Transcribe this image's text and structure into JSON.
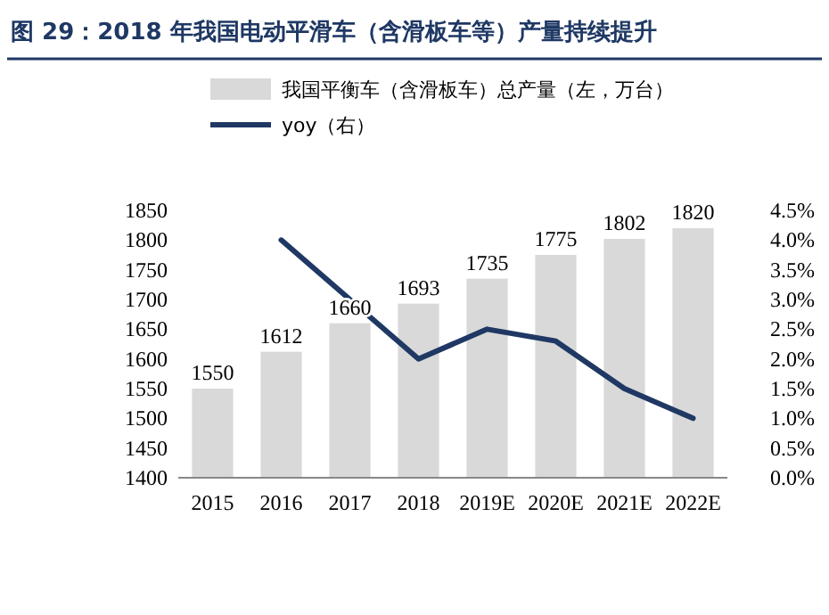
{
  "chart_data": {
    "type": "bar",
    "title": "图 29：2018 年我国电动平滑车（含滑板车等）产量持续提升",
    "categories": [
      "2015",
      "2016",
      "2017",
      "2018",
      "2019E",
      "2020E",
      "2021E",
      "2022E"
    ],
    "series": [
      {
        "name": "我国平衡车（含滑板车）总产量（左，万台）",
        "color": "#d9d9d9",
        "values": [
          1550,
          1612,
          1660,
          1693,
          1735,
          1775,
          1802,
          1820
        ],
        "value_labels": [
          "1550",
          "1612",
          "1660",
          "1693",
          "1735",
          "1775",
          "1802",
          "1820"
        ]
      },
      {
        "name": "yoy（右）",
        "type": "line",
        "axis": "y2",
        "color": "#1f3864",
        "values": [
          null,
          4.0,
          3.0,
          2.0,
          2.5,
          2.3,
          1.5,
          1.0
        ]
      }
    ],
    "ylim": [
      1400,
      1850
    ],
    "yticks": [
      1400,
      1450,
      1500,
      1550,
      1600,
      1650,
      1700,
      1750,
      1800,
      1850
    ],
    "y2lim": [
      0,
      4.5
    ],
    "y2ticks": [
      {
        "value": 0,
        "label": "0.0%"
      },
      {
        "value": 0.5,
        "label": "0.5%"
      },
      {
        "value": 1,
        "label": "1.0%"
      },
      {
        "value": 1.5,
        "label": "1.5%"
      },
      {
        "value": 2,
        "label": "2.0%"
      },
      {
        "value": 2.5,
        "label": "2.5%"
      },
      {
        "value": 3,
        "label": "3.0%"
      },
      {
        "value": 3.5,
        "label": "3.5%"
      },
      {
        "value": 4,
        "label": "4.0%"
      },
      {
        "value": 4.5,
        "label": "4.5%"
      }
    ],
    "legend": "top",
    "grid": false
  }
}
